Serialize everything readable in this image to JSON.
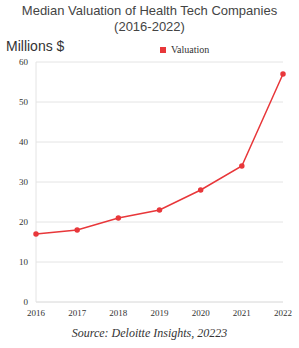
{
  "chart_data": {
    "type": "line",
    "title": "Median Valuation of Health Tech Companies (2016-2022)",
    "y_label": "Millions $",
    "source": "Source: Deloitte Insights, 20223",
    "categories": [
      "2016",
      "2017",
      "2018",
      "2019",
      "2020",
      "2021",
      "2022"
    ],
    "series": [
      {
        "name": "Valuation",
        "color": "#e8373a",
        "values": [
          17,
          18,
          21,
          23,
          28,
          34,
          57
        ],
        "marker": "circle"
      }
    ],
    "ylim": [
      0,
      60
    ],
    "yticks": [
      0,
      10,
      20,
      30,
      40,
      50,
      60
    ],
    "grid": true,
    "legend": "top"
  }
}
